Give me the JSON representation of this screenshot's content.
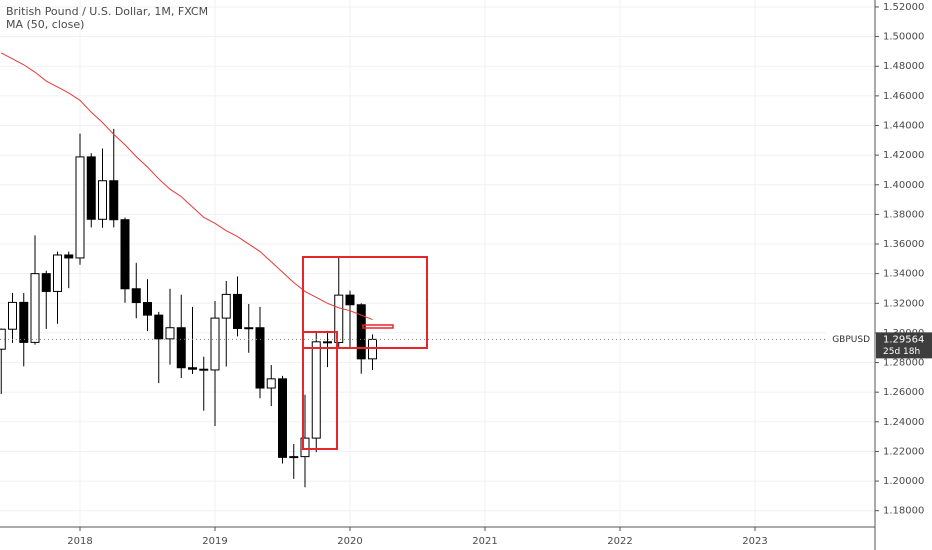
{
  "chart_data": {
    "type": "candlestick",
    "title": "British Pound / U.S. Dollar, 1M, FXCM",
    "indicator": "MA (50, close)",
    "symbol": "GBPUSD",
    "countdown": "25d 18h",
    "up_color": "#ffffff",
    "down_color": "#000000",
    "ma_color": "#e53935",
    "categories": [
      null,
      null,
      null,
      null,
      null,
      null,
      null,
      "2018",
      null,
      null,
      null,
      null,
      null,
      null,
      null,
      null,
      null,
      null,
      null,
      "2019",
      null,
      null,
      null,
      null,
      null,
      null,
      null,
      null,
      null,
      null,
      null,
      "2020",
      null,
      null,
      null,
      null,
      null,
      null,
      null,
      null,
      null,
      null,
      null,
      "2021",
      null,
      null,
      null,
      null,
      null,
      null,
      null,
      null,
      null,
      null,
      null,
      "2022",
      null,
      null,
      null,
      null,
      null,
      null,
      null,
      null,
      null,
      null,
      null,
      "2023",
      null,
      null,
      null,
      null,
      null,
      null,
      null,
      null,
      null,
      null
    ],
    "open": [
      1.289,
      1.3025,
      1.3206,
      1.2936,
      1.34,
      1.328,
      1.3526,
      1.3506,
      1.4188,
      1.3767,
      1.4027,
      1.3764,
      1.3298,
      1.3205,
      1.312,
      1.296,
      1.3035,
      1.2765,
      1.2755,
      1.275,
      1.31,
      1.326,
      1.303,
      1.3035,
      1.2628,
      1.269,
      1.216,
      1.2165,
      1.229,
      1.294,
      1.2935,
      1.3255,
      1.319,
      1.2825,
      null,
      null,
      null,
      null,
      null,
      null,
      null,
      null,
      null,
      null,
      null,
      null,
      null,
      null,
      null,
      null,
      null,
      null,
      null,
      null,
      null,
      null,
      null,
      null,
      null,
      null,
      null,
      null,
      null,
      null,
      null,
      null,
      null,
      null,
      null,
      null,
      null,
      null,
      null,
      null,
      null,
      null,
      null,
      null
    ],
    "high": [
      1.303,
      1.327,
      1.3269,
      1.3658,
      1.342,
      1.3549,
      1.3549,
      1.4345,
      1.4213,
      1.4245,
      1.4377,
      1.3778,
      1.3473,
      1.3362,
      1.3142,
      1.3298,
      1.3258,
      1.3176,
      1.284,
      1.3215,
      1.335,
      1.3381,
      1.3195,
      1.3176,
      1.2783,
      1.271,
      1.225,
      1.2583,
      1.3012,
      1.3014,
      1.3514,
      1.3285,
      1.32,
      1.299,
      null,
      null,
      null,
      null,
      null,
      null,
      null,
      null,
      null,
      null,
      null,
      null,
      null,
      null,
      null,
      null,
      null,
      null,
      null,
      null,
      null,
      null,
      null,
      null,
      null,
      null,
      null,
      null,
      null,
      null,
      null,
      null,
      null,
      null,
      null,
      null,
      null,
      null,
      null,
      null,
      null,
      null,
      null,
      null
    ],
    "low": [
      1.2588,
      1.2933,
      1.2774,
      1.2921,
      1.3027,
      1.3062,
      1.3302,
      1.346,
      1.3712,
      1.371,
      1.3712,
      1.3204,
      1.3099,
      1.3012,
      1.2661,
      1.2786,
      1.2696,
      1.2723,
      1.2475,
      1.2372,
      1.2773,
      1.2977,
      1.2866,
      1.2559,
      1.2506,
      1.2119,
      1.2015,
      1.1958,
      1.2195,
      1.2769,
      1.2905,
      1.2904,
      1.2725,
      1.275,
      null,
      null,
      null,
      null,
      null,
      null,
      null,
      null,
      null,
      null,
      null,
      null,
      null,
      null,
      null,
      null,
      null,
      null,
      null,
      null,
      null,
      null,
      null,
      null,
      null,
      null,
      null,
      null,
      null,
      null,
      null,
      null,
      null,
      null,
      null,
      null,
      null,
      null,
      null,
      null,
      null,
      null,
      null,
      null
    ],
    "close": [
      1.3025,
      1.3206,
      1.2936,
      1.34,
      1.328,
      1.3526,
      1.3506,
      1.4188,
      1.3767,
      1.4027,
      1.3764,
      1.3298,
      1.3205,
      1.312,
      1.296,
      1.3035,
      1.2765,
      1.2755,
      1.275,
      1.31,
      1.326,
      1.303,
      1.3035,
      1.2628,
      1.269,
      1.216,
      1.2165,
      1.229,
      1.294,
      1.2935,
      1.3255,
      1.319,
      1.2825,
      1.29564,
      null,
      null,
      null,
      null,
      null,
      null,
      null,
      null,
      null,
      null,
      null,
      null,
      null,
      null,
      null,
      null,
      null,
      null,
      null,
      null,
      null,
      null,
      null,
      null,
      null,
      null,
      null,
      null,
      null,
      null,
      null,
      null,
      null,
      null,
      null,
      null,
      null,
      null,
      null,
      null,
      null,
      null,
      null,
      null
    ],
    "ma": [
      1.489,
      1.485,
      1.481,
      1.476,
      1.47,
      1.466,
      1.462,
      1.457,
      1.449,
      1.442,
      1.434,
      1.427,
      1.419,
      1.412,
      1.404,
      1.397,
      1.392,
      1.385,
      1.378,
      1.374,
      1.369,
      1.365,
      1.36,
      1.355,
      1.348,
      1.341,
      1.334,
      1.328,
      1.324,
      1.32,
      1.317,
      1.315,
      1.312,
      1.309,
      null,
      null,
      null,
      null,
      null,
      null,
      null,
      null,
      null,
      null,
      null,
      null,
      null,
      null,
      null,
      null,
      null,
      null,
      null,
      null,
      null,
      null,
      null,
      null,
      null,
      null,
      null,
      null,
      null,
      null,
      null,
      null,
      null,
      null,
      null,
      null,
      null,
      null,
      null,
      null,
      null,
      null,
      null,
      null
    ],
    "ylim": [
      1.169,
      1.5247
    ],
    "yticks": [
      {
        "value": 1.18,
        "label": "1.18000"
      },
      {
        "value": 1.2,
        "label": "1.20000"
      },
      {
        "value": 1.22,
        "label": "1.22000"
      },
      {
        "value": 1.24,
        "label": "1.24000"
      },
      {
        "value": 1.26,
        "label": "1.26000"
      },
      {
        "value": 1.28,
        "label": "1.28000"
      },
      {
        "value": 1.3,
        "label": "1.30000"
      },
      {
        "value": 1.32,
        "label": "1.32000"
      },
      {
        "value": 1.34,
        "label": "1.34000"
      },
      {
        "value": 1.36,
        "label": "1.36000"
      },
      {
        "value": 1.38,
        "label": "1.38000"
      },
      {
        "value": 1.4,
        "label": "1.40000"
      },
      {
        "value": 1.42,
        "label": "1.42000"
      },
      {
        "value": 1.44,
        "label": "1.44000"
      },
      {
        "value": 1.46,
        "label": "1.46000"
      },
      {
        "value": 1.48,
        "label": "1.48000"
      },
      {
        "value": 1.5,
        "label": "1.50000"
      },
      {
        "value": 1.52,
        "label": "1.52000"
      }
    ],
    "grid": true
  }
}
